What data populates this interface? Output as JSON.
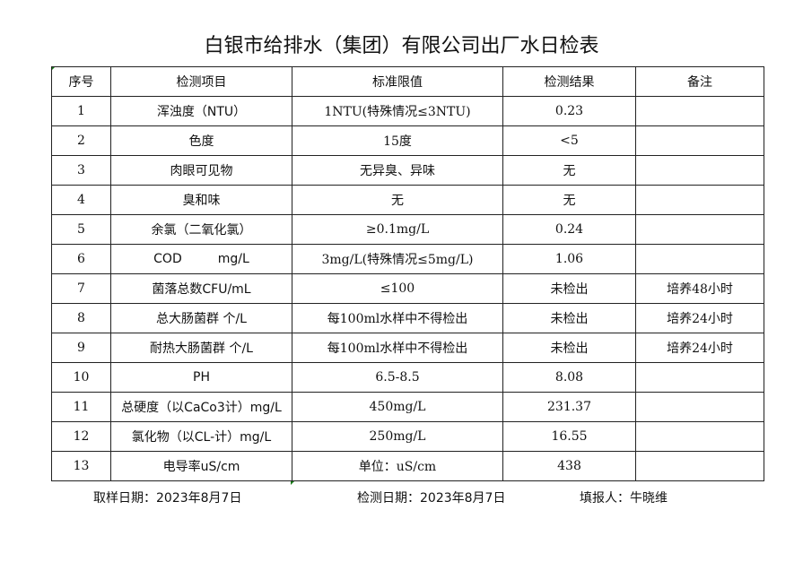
{
  "title": "白银市给排水（集团）有限公司出厂水日检表",
  "headers": [
    "序号",
    "检测项目",
    "标准限值",
    "检测结果",
    "备注"
  ],
  "rows": [
    [
      "1",
      "浑浊度（NTU）",
      "1NTU(特殊情况≤3NTU)",
      "0.23",
      ""
    ],
    [
      "2",
      "色度",
      "15度",
      "<5",
      ""
    ],
    [
      "3",
      "肉眼可见物",
      "无异臭、异味",
      "无",
      ""
    ],
    [
      "4",
      "臭和味",
      "无",
      "无",
      ""
    ],
    [
      "5",
      "余氯（二氧化氯）",
      "≥0.1mg/L",
      "0.24",
      ""
    ],
    [
      "6",
      "COD         mg/L",
      "3mg/L(特殊情况≤5mg/L)",
      "1.06",
      ""
    ],
    [
      "7",
      "菌落总数CFU/mL",
      "≤100",
      "未检出",
      "培养48小时"
    ],
    [
      "8",
      "总大肠菌群 个/L",
      "每100ml水样中不得检出",
      "未检出",
      "培养24小时"
    ],
    [
      "9",
      "耐热大肠菌群 个/L",
      "每100ml水样中不得检出",
      "未检出",
      "培养24小时"
    ],
    [
      "10",
      "PH",
      "6.5-8.5",
      "8.08",
      ""
    ],
    [
      "11",
      "总硬度（以CaCo3计）mg/L",
      "450mg/L",
      "231.37",
      ""
    ],
    [
      "12",
      "氯化物（以CL-计）mg/L",
      "250mg/L",
      "16.55",
      ""
    ],
    [
      "13",
      "电导率uS/cm",
      "单位：uS/cm",
      "438",
      ""
    ]
  ],
  "footer": {
    "sampling_date": "取样日期：2023年8月7日",
    "test_date": "检测日期：2023年8月7日",
    "reporter": "填报人：牛晓维"
  }
}
